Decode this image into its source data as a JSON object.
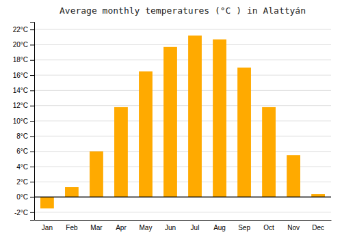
{
  "chart_data": {
    "type": "bar",
    "title": "Average monthly temperatures (°C ) in Alattyán",
    "categories": [
      "Jan",
      "Feb",
      "Mar",
      "Apr",
      "May",
      "Jun",
      "Jul",
      "Aug",
      "Sep",
      "Oct",
      "Nov",
      "Dec"
    ],
    "values": [
      -1.5,
      1.3,
      6.0,
      11.8,
      16.5,
      19.7,
      21.2,
      20.7,
      17.0,
      11.8,
      5.5,
      0.4
    ],
    "color": "#FFAA00",
    "ylim": [
      -3,
      23
    ],
    "yticks": [
      {
        "value": -2,
        "label": "-2°C"
      },
      {
        "value": 0,
        "label": "0°C"
      },
      {
        "value": 2,
        "label": "2°C"
      },
      {
        "value": 4,
        "label": "4°C"
      },
      {
        "value": 6,
        "label": "6°C"
      },
      {
        "value": 8,
        "label": "8°C"
      },
      {
        "value": 10,
        "label": "10°C"
      },
      {
        "value": 12,
        "label": "12°C"
      },
      {
        "value": 14,
        "label": "14°C"
      },
      {
        "value": 16,
        "label": "16°C"
      },
      {
        "value": 18,
        "label": "18°C"
      },
      {
        "value": 20,
        "label": "20°C"
      },
      {
        "value": 22,
        "label": "22°C"
      }
    ],
    "grid": true
  }
}
